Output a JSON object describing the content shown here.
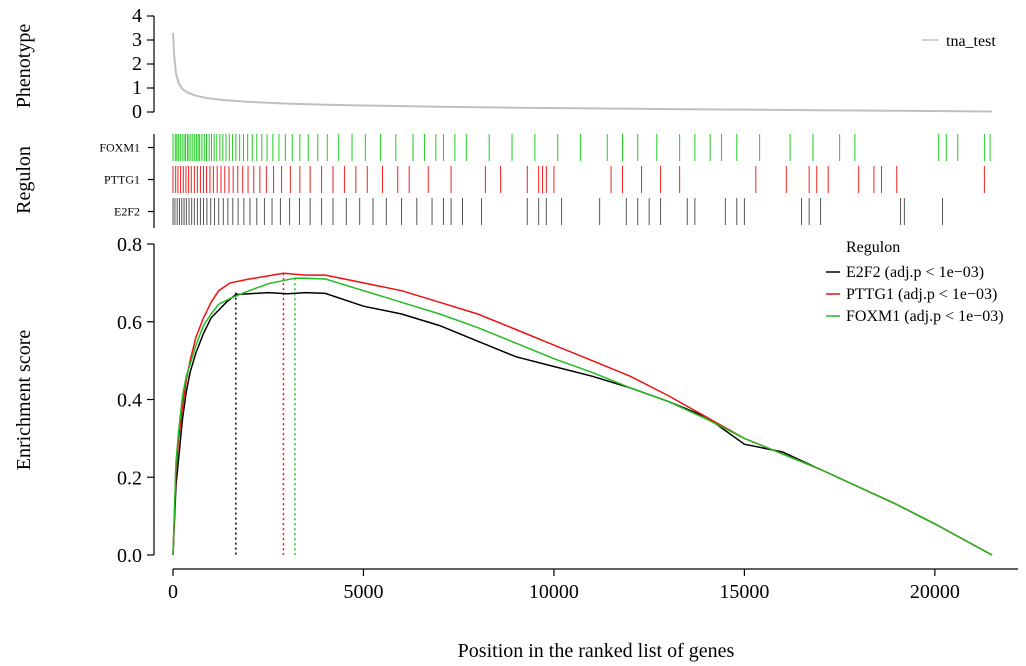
{
  "chart_data": {
    "type": "line",
    "xlabel": "Position in the ranked list of genes",
    "x_ticks": [
      0,
      5000,
      10000,
      15000,
      20000
    ],
    "x_range": [
      0,
      21500
    ],
    "phenotype": {
      "ylabel": "Phenotype",
      "ylim": [
        0,
        4
      ],
      "y_ticks": [
        0,
        1,
        2,
        3,
        4
      ],
      "series_name": "tna_test",
      "color": "#bfbfbf",
      "points": [
        [
          0,
          3.3
        ],
        [
          30,
          2.4
        ],
        [
          80,
          1.6
        ],
        [
          150,
          1.2
        ],
        [
          250,
          0.95
        ],
        [
          400,
          0.8
        ],
        [
          600,
          0.68
        ],
        [
          900,
          0.58
        ],
        [
          1300,
          0.5
        ],
        [
          2000,
          0.42
        ],
        [
          3000,
          0.35
        ],
        [
          4000,
          0.3
        ],
        [
          5000,
          0.27
        ],
        [
          7000,
          0.22
        ],
        [
          9000,
          0.18
        ],
        [
          11000,
          0.15
        ],
        [
          13000,
          0.12
        ],
        [
          15000,
          0.1
        ],
        [
          17000,
          0.07
        ],
        [
          19000,
          0.05
        ],
        [
          21500,
          0.02
        ]
      ]
    },
    "regulon_track": {
      "ylabel": "Regulon",
      "rows": [
        {
          "name": "FOXM1",
          "color": "#22cc22",
          "hits": [
            0,
            60,
            100,
            140,
            190,
            240,
            290,
            330,
            380,
            420,
            470,
            520,
            570,
            620,
            660,
            700,
            760,
            820,
            880,
            950,
            1010,
            1080,
            1150,
            1230,
            1310,
            1390,
            1480,
            1560,
            1650,
            1750,
            1850,
            1960,
            2080,
            2200,
            2330,
            2470,
            2620,
            2780,
            2950,
            3130,
            3330,
            3550,
            3800,
            4050,
            4350,
            4700,
            5050,
            5450,
            5850,
            6300,
            6600,
            6900,
            7100,
            7400,
            7700,
            8300,
            8900,
            9500,
            10100,
            10700,
            11400,
            11800,
            12200,
            12700,
            13300,
            13700,
            14100,
            14400,
            14800,
            15400,
            16200,
            16800,
            17500,
            17900,
            20100,
            20300,
            20600,
            21300,
            21450
          ]
        },
        {
          "name": "PTTG1",
          "color": "#ee2222",
          "hits": [
            0,
            70,
            130,
            200,
            270,
            340,
            410,
            480,
            560,
            640,
            720,
            800,
            880,
            970,
            1060,
            1160,
            1260,
            1360,
            1470,
            1580,
            1700,
            1830,
            1970,
            2120,
            2280,
            2450,
            2640,
            2850,
            3080,
            3330,
            3600,
            3900,
            4200,
            4500,
            4800,
            5100,
            5500,
            5900,
            6200,
            6700,
            7300,
            8200,
            8600,
            9300,
            9600,
            9700,
            9800,
            10000,
            11500,
            11800,
            12300,
            12800,
            13300,
            15300,
            16100,
            16700,
            16900,
            17200,
            18000,
            18400,
            18600,
            19000,
            21300
          ]
        },
        {
          "name": "E2F2",
          "color": "#555555",
          "hits": [
            0,
            50,
            110,
            170,
            230,
            290,
            350,
            420,
            490,
            560,
            640,
            720,
            800,
            890,
            990,
            1090,
            1200,
            1320,
            1440,
            1570,
            1710,
            1860,
            2020,
            2200,
            2400,
            2600,
            2820,
            3060,
            3320,
            3600,
            3900,
            4200,
            4550,
            4900,
            5250,
            5600,
            6000,
            6400,
            6800,
            7100,
            7300,
            7600,
            8100,
            9300,
            9600,
            9800,
            10200,
            11200,
            11900,
            12200,
            12500,
            12800,
            13500,
            13700,
            14500,
            14800,
            15000,
            16500,
            16700,
            17000,
            19100,
            19200,
            20200
          ]
        }
      ]
    },
    "enrichment": {
      "ylabel": "Enrichment score",
      "ylim": [
        0,
        0.8
      ],
      "y_ticks": [
        "0.0",
        "0.2",
        "0.4",
        "0.6",
        "0.8"
      ],
      "legend_title": "Regulon",
      "legend_position": "top-right",
      "series": [
        {
          "name": "E2F2 (adj.p < 1e−03)",
          "color": "#000000",
          "peak_x": 1650,
          "points": [
            [
              0,
              0
            ],
            [
              80,
              0.18
            ],
            [
              150,
              0.25
            ],
            [
              250,
              0.35
            ],
            [
              350,
              0.42
            ],
            [
              450,
              0.47
            ],
            [
              600,
              0.52
            ],
            [
              800,
              0.57
            ],
            [
              1000,
              0.61
            ],
            [
              1200,
              0.63
            ],
            [
              1400,
              0.65
            ],
            [
              1650,
              0.67
            ],
            [
              2000,
              0.672
            ],
            [
              2500,
              0.675
            ],
            [
              3000,
              0.672
            ],
            [
              3500,
              0.675
            ],
            [
              4000,
              0.673
            ],
            [
              5000,
              0.64
            ],
            [
              6000,
              0.62
            ],
            [
              7000,
              0.59
            ],
            [
              8000,
              0.55
            ],
            [
              9000,
              0.51
            ],
            [
              10000,
              0.485
            ],
            [
              11000,
              0.46
            ],
            [
              12000,
              0.43
            ],
            [
              13000,
              0.395
            ],
            [
              14000,
              0.355
            ],
            [
              15000,
              0.285
            ],
            [
              16000,
              0.265
            ],
            [
              17000,
              0.22
            ],
            [
              18000,
              0.175
            ],
            [
              19000,
              0.13
            ],
            [
              20000,
              0.08
            ],
            [
              21500,
              0.0
            ]
          ]
        },
        {
          "name": "PTTG1 (adj.p < 1e−03)",
          "color": "#ee1111",
          "peak_x": 2900,
          "points": [
            [
              0,
              0
            ],
            [
              80,
              0.22
            ],
            [
              150,
              0.3
            ],
            [
              250,
              0.38
            ],
            [
              350,
              0.45
            ],
            [
              450,
              0.5
            ],
            [
              600,
              0.56
            ],
            [
              800,
              0.61
            ],
            [
              1000,
              0.65
            ],
            [
              1200,
              0.68
            ],
            [
              1500,
              0.7
            ],
            [
              2000,
              0.71
            ],
            [
              2500,
              0.718
            ],
            [
              2900,
              0.725
            ],
            [
              3500,
              0.72
            ],
            [
              4000,
              0.72
            ],
            [
              5000,
              0.7
            ],
            [
              6000,
              0.68
            ],
            [
              7000,
              0.65
            ],
            [
              8000,
              0.62
            ],
            [
              9000,
              0.58
            ],
            [
              10000,
              0.54
            ],
            [
              11000,
              0.5
            ],
            [
              12000,
              0.46
            ],
            [
              13000,
              0.41
            ],
            [
              14000,
              0.355
            ],
            [
              15000,
              0.3
            ],
            [
              16000,
              0.26
            ],
            [
              17000,
              0.22
            ],
            [
              18000,
              0.175
            ],
            [
              19000,
              0.13
            ],
            [
              20000,
              0.08
            ],
            [
              21500,
              0.0
            ]
          ]
        },
        {
          "name": "FOXM1 (adj.p < 1e−03)",
          "color": "#22bb22",
          "peak_x": 3200,
          "points": [
            [
              0,
              0
            ],
            [
              80,
              0.24
            ],
            [
              150,
              0.32
            ],
            [
              250,
              0.41
            ],
            [
              350,
              0.46
            ],
            [
              450,
              0.49
            ],
            [
              600,
              0.54
            ],
            [
              800,
              0.59
            ],
            [
              1000,
              0.62
            ],
            [
              1200,
              0.645
            ],
            [
              1500,
              0.66
            ],
            [
              2000,
              0.68
            ],
            [
              2500,
              0.698
            ],
            [
              3200,
              0.712
            ],
            [
              3500,
              0.712
            ],
            [
              4000,
              0.71
            ],
            [
              5000,
              0.68
            ],
            [
              6000,
              0.65
            ],
            [
              7000,
              0.62
            ],
            [
              8000,
              0.585
            ],
            [
              9000,
              0.545
            ],
            [
              10000,
              0.505
            ],
            [
              11000,
              0.47
            ],
            [
              12000,
              0.43
            ],
            [
              13000,
              0.395
            ],
            [
              14000,
              0.35
            ],
            [
              15000,
              0.3
            ],
            [
              16000,
              0.26
            ],
            [
              17000,
              0.22
            ],
            [
              18000,
              0.175
            ],
            [
              19000,
              0.13
            ],
            [
              20000,
              0.08
            ],
            [
              21500,
              0.0
            ]
          ]
        }
      ]
    }
  }
}
